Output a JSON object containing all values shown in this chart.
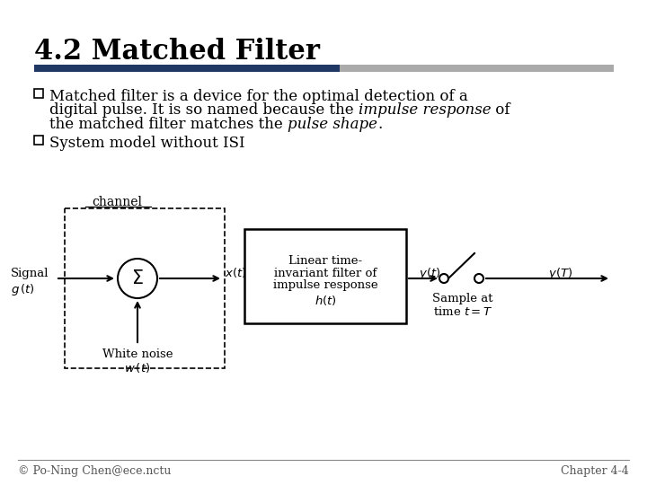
{
  "title": "4.2 Matched Filter",
  "title_fontsize": 22,
  "title_color": "#000000",
  "title_font": "serif",
  "bg_color": "#ffffff",
  "bar_color_left": "#1F3864",
  "bar_color_right": "#AAAAAA",
  "bullet2": "System model without ISI",
  "footer_left": "© Po-Ning Chen@ece.nctu",
  "footer_right": "Chapter 4-4",
  "footer_fontsize": 9,
  "text_fontsize": 12,
  "bullet_color": "#000000"
}
